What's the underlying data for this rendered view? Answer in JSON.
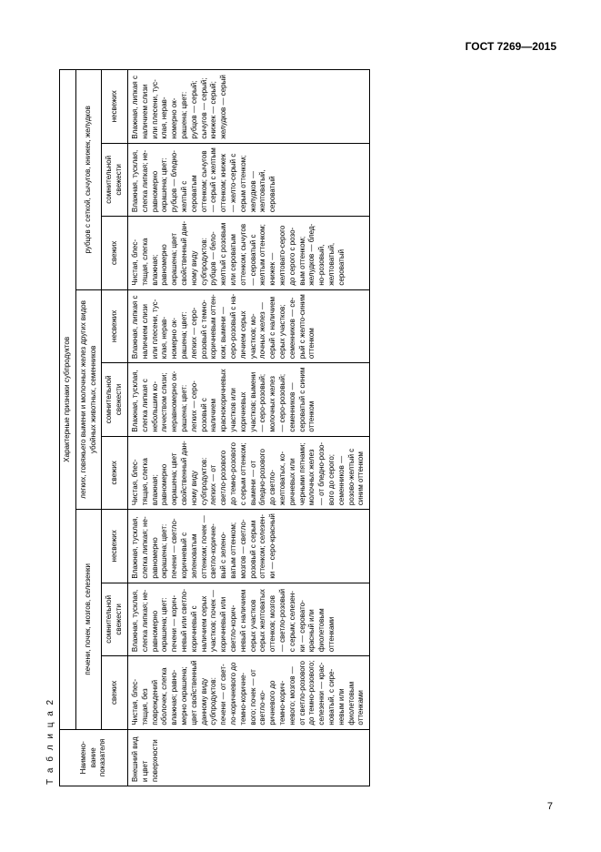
{
  "gost": "ГОСТ 7269—2015",
  "table_label": "Т а б л и ц а  2",
  "page_number": "7",
  "header": {
    "col0": "Наимено­вание показателя",
    "group_top": "Характерные признаки субпродуктов",
    "group1": "печени, почек, мозгов, селезенки",
    "group2": "легких, говяжьего вымени и молочных желез других видов убойных животных, семенников",
    "group3": "рубцов с сеткой, сычугов, книжек, желудков",
    "sub": {
      "a": "свежих",
      "b": "сомнительной свежести",
      "c": "несвежих"
    }
  },
  "row": {
    "name": "Внешний вид и цвет поверх­ности",
    "c1": "Чистая, блес­тящая, без повреждений оболочек, слегка влаж­ная; равно­мерно окра­шена; цвет свойственный данному ви­ду субпро­дуктов: пече­ни — от свет­ло-коричне­вого до тем­но-коричне­вого; почек — от светло-ко­ричневого до темно-корич­невого; моз­гов — от свет­ло-розового до темно-ро­зового; селе­зенки — крас­новатый, с сире­невым или фиолетовым оттенками",
    "c2": "Влажная, тус­клая, слегка липкая; не­равномерно окрашена; цвет: пече­ни — корич­невый или светло-корич­невый с нали­чием серых участков; по­чек — корич­невый или светло-корич­невый с нали­чием серых участков серых желто­ватых оттен­ков; моз­гов — светло-розовый с се­рым; селезен­ки — серо­вато-красный или фиолето­вым оттенка­ми",
    "c3": "Влажная, тус­клая, слегка липкая; не­равномерно окрашена; цвет: пече­ни — светло-коричневый с зеленоватым оттенком; по­чек — свет­ло-коричне­вый с зелено­ватым от­тенком; моз­гов — светло-розовый с се­рым оттен­ком; селезен­ки — серо-красный",
    "c4": "Чистая, блес­тящая, слег­ка влажная; равномерно окрашена; цвет свойст­венный дан­ному виду субпродуктов: легких — от светло-розо­вого до тем­но-розового с серым оттен­ком; выме­ни — от блед­но-розового до светло-желтоватых, ко­ричневых или черными пятнами; мо­лочных же­лез — от бледно-розо­вого до серо­го; семенни­ков — розо­во-желтый с синим оттен­ком",
    "c5": "Влажная, тус­клая, слегка липкая с не­большим ко­личеством слизи; нерав­номерно ок­рашена; цвет: легких — се­ро-розовый с наличием красноко­ричневых участков или коричневых участков; вы­мени — серо-розовый; мо­лочных же­лез — серо-розовый; се­менников — сероватый с синим от­тенком",
    "c6": "Влажная, лип­кая с наличи­ем слизи или плесени, тус­клая, нерав­номерно ок­рашена; цвет: легких — се­ро-розовый с темно-корич­невым оттен­ком; выме­ни — серо-розовый с на­личием се­рых участ­ков; мо­лочных же­лез — серый с наличием серых участ­ков; семен­ников — се­рый с желто-синим оттен­ком",
    "c7": "Чистая, блес­тящая, слег­ка влажная; равномерно окрашена; цвет свойст­венный дан­ному виду субпродуктов: рубцов — бе­ло-желтый с розовым или сероватым оттенком; сы­чугов — серо­ватый с жел­тым оттенком; книжек — желтовато-серого до се­рого с розо­вым оттен­ком; желуд­ков — блед­но-розовый, желтоватый, сероватый",
    "c8": "Влажная, тус­клая, слегка липкая; не­равномерно окрашена; цвет: руб­цов — блед­но-желтый с сероватым оттенком; сы­чугов — се­рый с желтым оттенком; книжек — желто-серый с серым от­тенком; же­лудков — желтоватый, сероватый",
    "c9": "Влажная, лип­кая с наличи­ем слизи или плесени, тус­клая, нерав­номерно ок­рашена; цвет: рубцов — се­рый; сычу­гов — серый; книжек — се­рый; желуд­ков — серый"
  }
}
